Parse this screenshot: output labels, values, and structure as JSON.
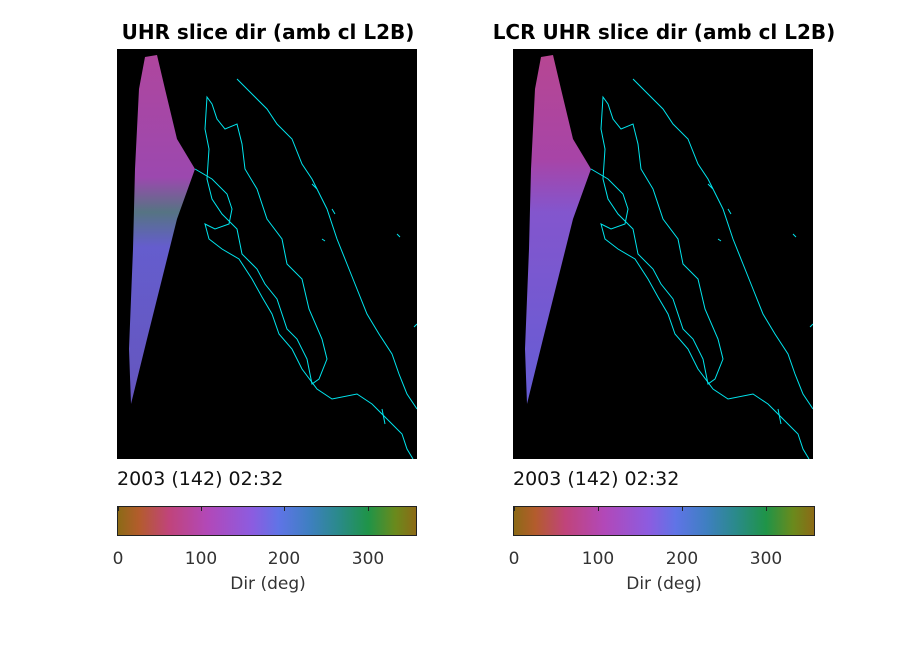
{
  "panels": [
    {
      "title": "UHR slice dir (amb cl L2B)",
      "timestamp": "2003 (142) 02:32",
      "colorbar": {
        "ticks": [
          "0",
          "100",
          "200",
          "300"
        ],
        "tick_values": [
          0,
          100,
          200,
          300
        ],
        "range": [
          0,
          360
        ],
        "label": "Dir (deg)"
      }
    },
    {
      "title": "LCR UHR slice dir (amb cl L2B)",
      "timestamp": "2003 (142) 02:32",
      "colorbar": {
        "ticks": [
          "0",
          "100",
          "200",
          "300"
        ],
        "tick_values": [
          0,
          100,
          200,
          300
        ],
        "range": [
          0,
          360
        ],
        "label": "Dir (deg)"
      }
    }
  ],
  "colors": {
    "background": "#000000",
    "coastline": "#00e5ee",
    "swath_main": "#8a5ad8",
    "swath_upper": "#b44aa8",
    "swath_lower": "#6a62d8"
  }
}
